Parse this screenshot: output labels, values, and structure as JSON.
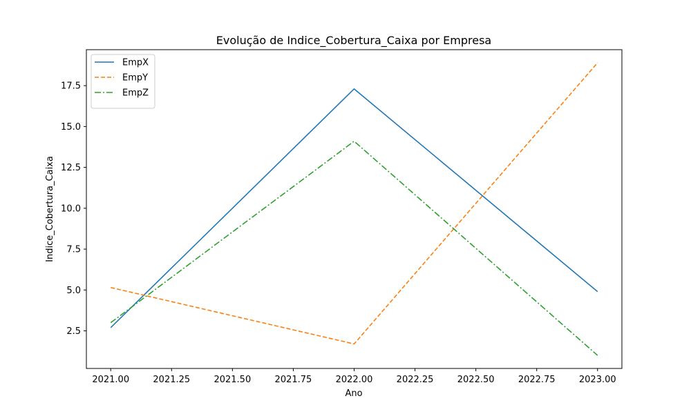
{
  "chart_data": {
    "type": "line",
    "title": "Evolução de Indice_Cobertura_Caixa por Empresa",
    "xlabel": "Ano",
    "ylabel": "Indice_Cobertura_Caixa",
    "x": [
      2021.0,
      2022.0,
      2023.0
    ],
    "xlim": [
      2020.9,
      2023.1
    ],
    "ylim": [
      0.2,
      19.7
    ],
    "xticks": [
      "2021.00",
      "2021.25",
      "2021.50",
      "2021.75",
      "2022.00",
      "2022.25",
      "2022.50",
      "2022.75",
      "2023.00"
    ],
    "xtick_values": [
      2021.0,
      2021.25,
      2021.5,
      2021.75,
      2022.0,
      2022.25,
      2022.5,
      2022.75,
      2023.0
    ],
    "yticks": [
      "2.5",
      "5.0",
      "7.5",
      "10.0",
      "12.5",
      "15.0",
      "17.5"
    ],
    "ytick_values": [
      2.5,
      5.0,
      7.5,
      10.0,
      12.5,
      15.0,
      17.5
    ],
    "grid": false,
    "legend_position": "top-left",
    "series": [
      {
        "name": "EmpX",
        "values": [
          2.7,
          17.3,
          4.9
        ],
        "color": "#1f77b4",
        "dash": "solid"
      },
      {
        "name": "EmpY",
        "values": [
          5.15,
          1.7,
          18.9
        ],
        "color": "#ff7f0e",
        "dash": "dashed"
      },
      {
        "name": "EmpZ",
        "values": [
          3.0,
          14.1,
          1.0
        ],
        "color": "#2ca02c",
        "dash": "dashdot"
      }
    ]
  }
}
